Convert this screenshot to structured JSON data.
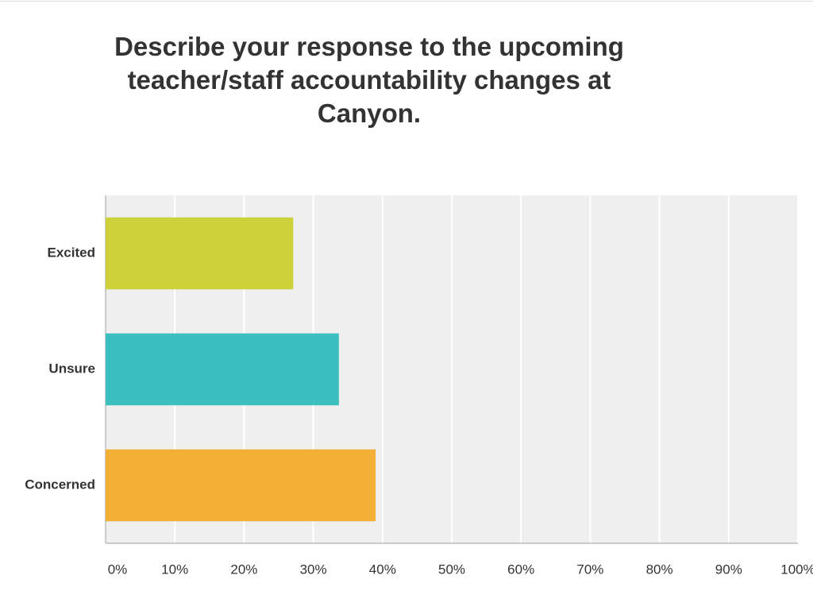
{
  "chart_data": {
    "type": "hbar",
    "title": "Describe your response to the upcoming teacher/staff accountability changes at Canyon.",
    "categories": [
      "Excited",
      "Unsure",
      "Concerned"
    ],
    "values": [
      27.1,
      33.7,
      39.0
    ],
    "colors": [
      "#cdd23b",
      "#3bbfbf",
      "#f3ae35"
    ],
    "xlim": [
      0,
      100
    ],
    "xticks": [
      {
        "value": 0,
        "label": "0%"
      },
      {
        "value": 10,
        "label": "10%"
      },
      {
        "value": 20,
        "label": "20%"
      },
      {
        "value": 30,
        "label": "30%"
      },
      {
        "value": 40,
        "label": "40%"
      },
      {
        "value": 50,
        "label": "50%"
      },
      {
        "value": 60,
        "label": "60%"
      },
      {
        "value": 70,
        "label": "70%"
      },
      {
        "value": 80,
        "label": "80%"
      },
      {
        "value": 90,
        "label": "90%"
      },
      {
        "value": 100,
        "label": "100%"
      }
    ],
    "grid": true
  }
}
